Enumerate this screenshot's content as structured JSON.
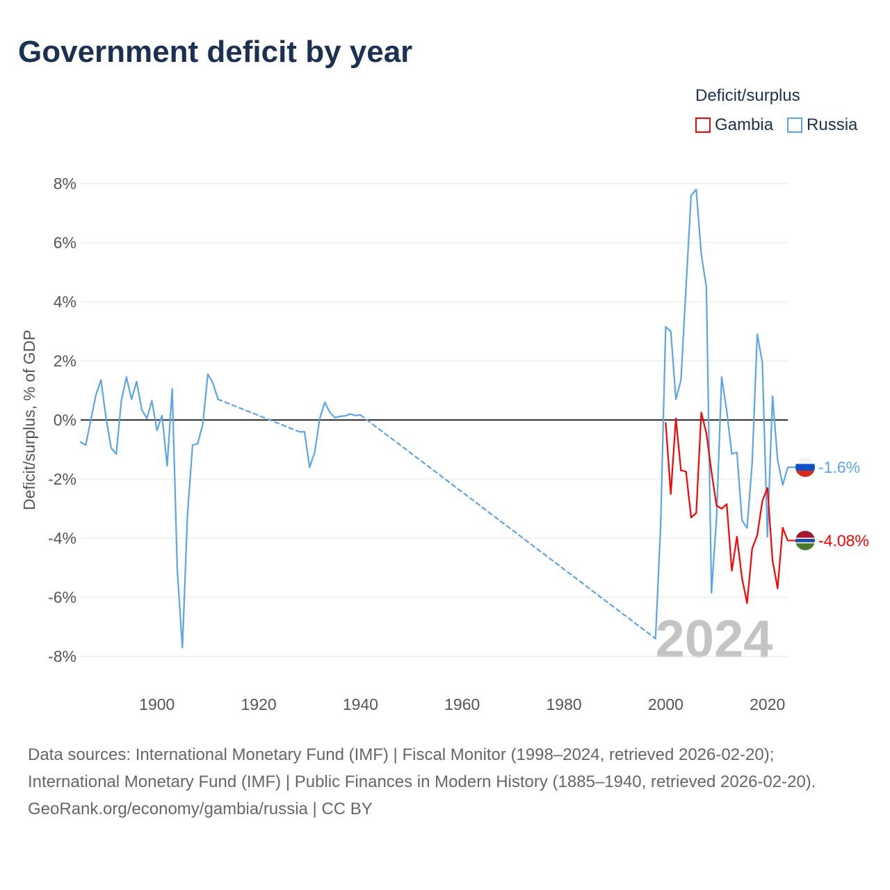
{
  "title": "Government deficit by year",
  "legend": {
    "title": "Deficit/surplus",
    "items": [
      {
        "name": "Gambia",
        "color": "#ff0000"
      },
      {
        "name": "Russia",
        "color": "#5aa5ea"
      }
    ]
  },
  "footer": {
    "sources": "Data sources: International Monetary Fund (IMF) | Fiscal Monitor (1998–2024, retrieved 2026-02-20); International Monetary Fund (IMF) | Public Finances in Modern History (1885–1940, retrieved 2026-02-20).",
    "credit": "GeoRank.org/economy/gambia/russia | CC BY"
  },
  "chart_data": {
    "type": "line",
    "title": "Government deficit by year",
    "xlabel": "",
    "ylabel": "Deficit/surplus, % of GDP",
    "xlim": [
      1885,
      2024
    ],
    "ylim": [
      -8,
      8
    ],
    "xticks": [
      1900,
      1920,
      1940,
      1960,
      1980,
      2000,
      2020
    ],
    "yticks": [
      -8,
      -6,
      -4,
      -2,
      0,
      2,
      4,
      6,
      8
    ],
    "ytick_labels": [
      "-8%",
      "-6%",
      "-4%",
      "-2%",
      "0%",
      "2%",
      "4%",
      "6%",
      "8%"
    ],
    "year_watermark": "2024",
    "series": [
      {
        "name": "Russia",
        "color": "#5aa5ea",
        "end_label": "-1.6%",
        "x": [
          1885,
          1886,
          1887,
          1888,
          1889,
          1890,
          1891,
          1892,
          1893,
          1894,
          1895,
          1896,
          1897,
          1898,
          1899,
          1900,
          1901,
          1902,
          1903,
          1904,
          1905,
          1906,
          1907,
          1908,
          1909,
          1910,
          1911,
          1912,
          1928,
          1929,
          1930,
          1931,
          1932,
          1933,
          1934,
          1935,
          1936,
          1937,
          1938,
          1939,
          1940,
          1998,
          1999,
          2000,
          2001,
          2002,
          2003,
          2004,
          2005,
          2006,
          2007,
          2008,
          2009,
          2010,
          2011,
          2012,
          2013,
          2014,
          2015,
          2016,
          2017,
          2018,
          2019,
          2020,
          2021,
          2022,
          2023,
          2024
        ],
        "y": [
          -0.75,
          -0.85,
          0.0,
          0.85,
          1.35,
          0.05,
          -0.95,
          -1.15,
          0.65,
          1.45,
          0.7,
          1.3,
          0.35,
          0.05,
          0.65,
          -0.35,
          0.15,
          -1.55,
          1.05,
          -5.1,
          -7.7,
          -3.2,
          -0.85,
          -0.8,
          -0.15,
          1.55,
          1.25,
          0.7,
          -0.4,
          -0.4,
          -1.6,
          -1.1,
          0.05,
          0.6,
          0.25,
          0.08,
          0.12,
          0.14,
          0.2,
          0.15,
          0.17,
          -7.4,
          -3.6,
          3.15,
          3.0,
          0.7,
          1.35,
          4.5,
          7.6,
          7.8,
          5.6,
          4.5,
          -5.85,
          -3.3,
          1.45,
          0.3,
          -1.15,
          -1.1,
          -3.4,
          -3.65,
          -1.45,
          2.9,
          1.95,
          -3.95,
          0.8,
          -1.35,
          -2.2,
          -1.6
        ]
      },
      {
        "name": "Gambia",
        "color": "#ff0000",
        "end_label": "-4.08%",
        "x": [
          2000,
          2001,
          2002,
          2003,
          2004,
          2005,
          2006,
          2007,
          2008,
          2009,
          2010,
          2011,
          2012,
          2013,
          2014,
          2015,
          2016,
          2017,
          2018,
          2019,
          2020,
          2021,
          2022,
          2023,
          2024
        ],
        "y": [
          -0.1,
          -2.5,
          0.05,
          -1.7,
          -1.75,
          -3.3,
          -3.15,
          0.25,
          -0.45,
          -1.75,
          -2.9,
          -3.0,
          -2.85,
          -5.1,
          -3.95,
          -5.35,
          -6.2,
          -4.35,
          -3.9,
          -2.75,
          -2.3,
          -4.75,
          -5.7,
          -3.65,
          -4.08
        ]
      }
    ]
  }
}
